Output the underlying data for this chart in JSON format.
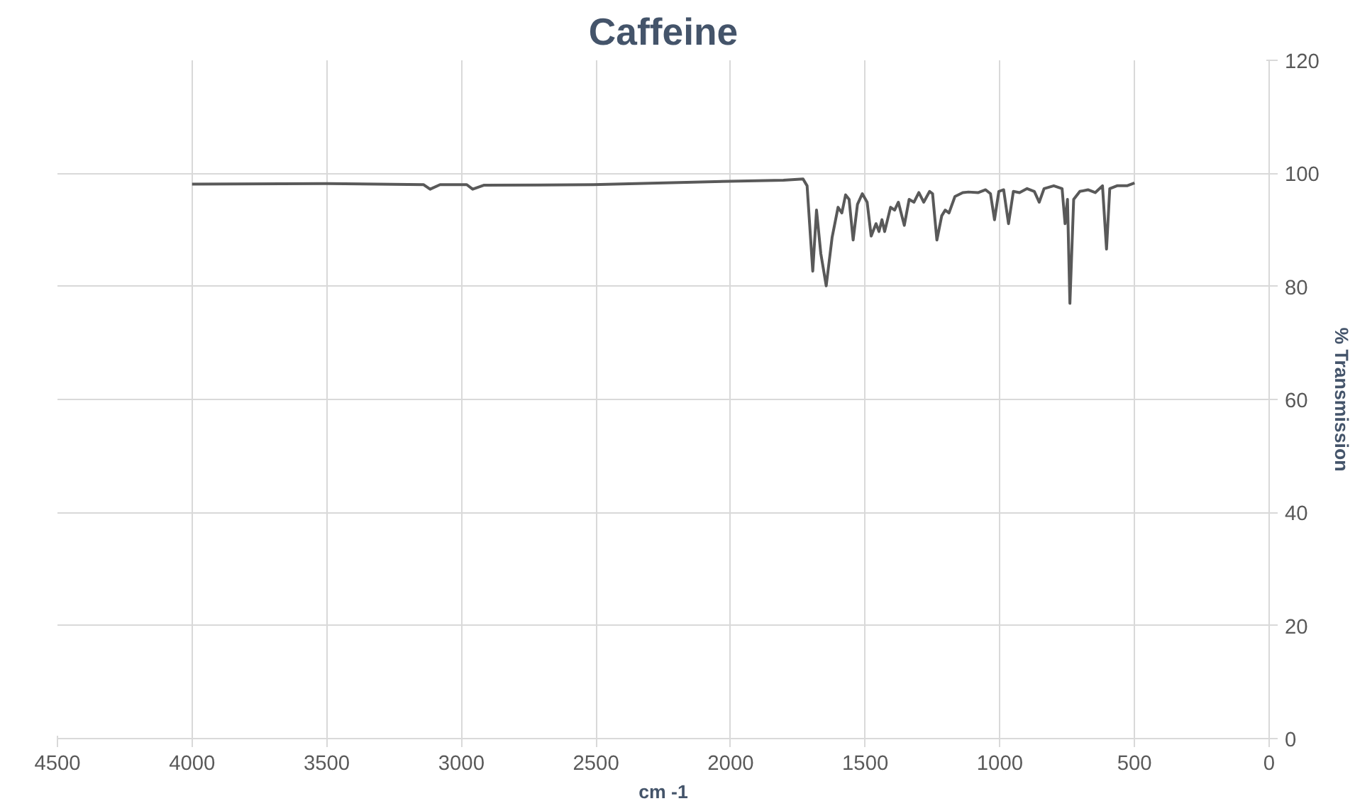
{
  "chart_data": {
    "type": "line",
    "title": "Caffeine",
    "xlabel": "cm -1",
    "ylabel": "% Transmission",
    "xlim": [
      4500,
      0
    ],
    "xticks": [
      4500,
      4000,
      3500,
      3000,
      2500,
      2000,
      1500,
      1000,
      500,
      0
    ],
    "ylim": [
      0,
      120
    ],
    "yticks": [
      0,
      20,
      40,
      60,
      80,
      100,
      120
    ],
    "grid": true,
    "marker": "none",
    "line_style": "solid",
    "series": [
      {
        "color": "#595959",
        "x": [
          4000,
          3500,
          3140,
          3116,
          3079,
          2980,
          2958,
          2917,
          2510,
          2003,
          1804,
          1731,
          1716,
          1695,
          1681,
          1665,
          1645,
          1623,
          1601,
          1587,
          1573,
          1560,
          1545,
          1529,
          1511,
          1493,
          1478,
          1460,
          1449,
          1438,
          1428,
          1406,
          1391,
          1377,
          1355,
          1337,
          1319,
          1301,
          1283,
          1261,
          1250,
          1234,
          1216,
          1203,
          1189,
          1167,
          1138,
          1117,
          1080,
          1053,
          1035,
          1020,
          1004,
          986,
          968,
          950,
          927,
          899,
          872,
          854,
          836,
          800,
          769,
          758,
          749,
          740,
          726,
          703,
          673,
          646,
          619,
          604,
          592,
          565,
          528,
          500
        ],
        "values": [
          98.1,
          98.2,
          98.0,
          97.2,
          98.0,
          98.0,
          97.2,
          97.9,
          98.0,
          98.6,
          98.8,
          99.0,
          97.8,
          82.7,
          93.5,
          85.8,
          80.1,
          88.7,
          94.0,
          93.0,
          96.2,
          95.4,
          88.2,
          94.5,
          96.4,
          94.9,
          88.9,
          91.1,
          89.7,
          91.8,
          89.7,
          94.0,
          93.5,
          94.9,
          90.8,
          95.4,
          94.9,
          96.6,
          94.9,
          96.8,
          96.4,
          88.2,
          92.5,
          93.5,
          93.0,
          95.9,
          96.6,
          96.7,
          96.6,
          97.1,
          96.4,
          91.8,
          96.8,
          97.1,
          91.1,
          96.8,
          96.6,
          97.3,
          96.8,
          94.9,
          97.3,
          97.8,
          97.3,
          91.1,
          95.4,
          77.0,
          95.4,
          96.8,
          97.1,
          96.6,
          97.8,
          86.6,
          97.3,
          97.8,
          97.8,
          98.3
        ]
      }
    ]
  }
}
